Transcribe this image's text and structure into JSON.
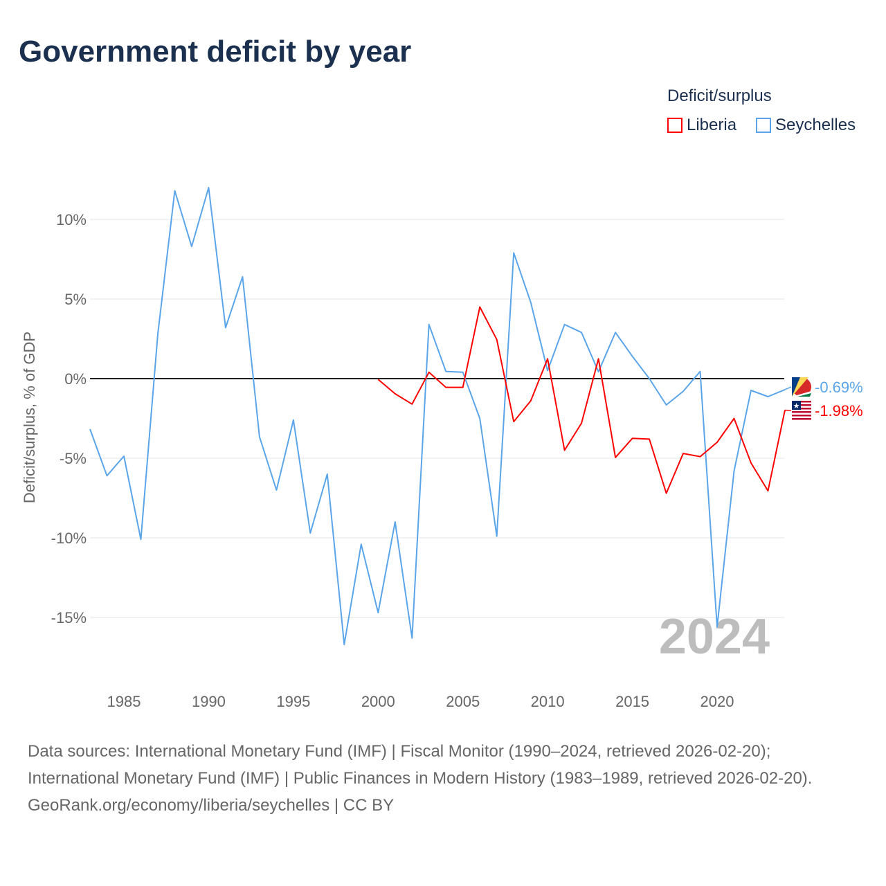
{
  "title": "Government deficit by year",
  "legend": {
    "title": "Deficit/surplus",
    "items": [
      {
        "name": "Liberia",
        "color": "#ff0000"
      },
      {
        "name": "Seychelles",
        "color": "#5aa5ea"
      }
    ]
  },
  "footer": {
    "sources": "Data sources: International Monetary Fund (IMF) | Fiscal Monitor (1990–2024, retrieved 2026-02-20); International Monetary Fund (IMF) | Public Finances in Modern History (1983–1989, retrieved 2026-02-20).",
    "credit": "GeoRank.org/economy/liberia/seychelles | CC BY"
  },
  "chart_data": {
    "type": "line",
    "title": "Government deficit by year",
    "ylabel": "Deficit/surplus, % of GDP",
    "xlabel": "",
    "xlim": [
      1983,
      2024
    ],
    "ylim": [
      -18.5,
      14
    ],
    "yticks": [
      {
        "v": 10,
        "label": "10%"
      },
      {
        "v": 5,
        "label": "5%"
      },
      {
        "v": 0,
        "label": "0%"
      },
      {
        "v": -5,
        "label": "-5%"
      },
      {
        "v": -10,
        "label": "-10%"
      },
      {
        "v": -15,
        "label": "-15%"
      }
    ],
    "xticks": [
      1985,
      1990,
      1995,
      2000,
      2005,
      2010,
      2015,
      2020
    ],
    "year_watermark": "2024",
    "series": [
      {
        "name": "Liberia",
        "color": "#ff0000",
        "end_label": "-1.98%",
        "start_year": 2000,
        "values": [
          -0.05,
          -0.95,
          -1.6,
          0.4,
          -0.55,
          -0.55,
          4.5,
          2.45,
          -2.7,
          -1.4,
          1.25,
          -4.5,
          -2.8,
          1.25,
          -4.95,
          -3.75,
          -3.8,
          -7.2,
          -4.7,
          -4.9,
          -4.0,
          -2.5,
          -5.3,
          -7.05,
          -1.98
        ]
      },
      {
        "name": "Seychelles",
        "color": "#5aa5ea",
        "end_label": "-0.69%",
        "start_year": 1983,
        "values": [
          -3.17,
          -6.1,
          -4.87,
          -10.1,
          2.8,
          11.8,
          8.3,
          12.0,
          3.2,
          6.4,
          -3.65,
          -7.0,
          -2.6,
          -9.7,
          -6.0,
          -16.7,
          -10.4,
          -14.7,
          -9.0,
          -16.3,
          3.4,
          0.45,
          0.4,
          -2.5,
          -9.9,
          7.9,
          4.8,
          0.5,
          3.4,
          2.9,
          0.43,
          2.9,
          1.4,
          0.0,
          -1.65,
          -0.8,
          0.45,
          -15.6,
          -5.8,
          -0.74,
          -1.13,
          -0.69
        ]
      }
    ]
  }
}
